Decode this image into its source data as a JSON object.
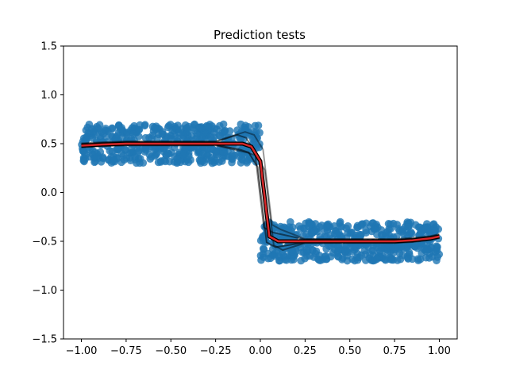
{
  "chart_data": {
    "type": "scatter",
    "title": "Prediction tests",
    "xlabel": "",
    "ylabel": "",
    "xlim": [
      -1.1,
      1.1
    ],
    "ylim": [
      -1.5,
      1.5
    ],
    "x_ticks": [
      -1.0,
      -0.75,
      -0.5,
      -0.25,
      0.0,
      0.25,
      0.5,
      0.75,
      1.0
    ],
    "x_tick_labels": [
      "−1.00",
      "−0.75",
      "−0.50",
      "−0.25",
      "0.00",
      "0.25",
      "0.50",
      "0.75",
      "1.00"
    ],
    "y_ticks": [
      -1.5,
      -1.0,
      -0.5,
      0.0,
      0.5,
      1.0,
      1.5
    ],
    "y_tick_labels": [
      "−1.5",
      "−1.0",
      "−0.5",
      "0.0",
      "0.5",
      "1.0",
      "1.5"
    ],
    "grid": false,
    "legend": "none",
    "scatter_color": "#1f77b4",
    "scatter_clusters": [
      {
        "x_range": [
          -1.0,
          0.0
        ],
        "y_range": [
          0.3,
          0.7
        ]
      },
      {
        "x_range": [
          0.0,
          1.0
        ],
        "y_range": [
          -0.7,
          -0.3
        ]
      }
    ],
    "series": [
      {
        "color": "#d62728",
        "x": [
          -1.0,
          -0.9,
          -0.75,
          -0.5,
          -0.25,
          -0.1,
          -0.05,
          0.0,
          0.05,
          0.1,
          0.25,
          0.5,
          0.75,
          0.85,
          0.95,
          1.0
        ],
        "y": [
          0.48,
          0.49,
          0.5,
          0.5,
          0.5,
          0.5,
          0.47,
          0.32,
          -0.45,
          -0.5,
          -0.5,
          -0.5,
          -0.5,
          -0.49,
          -0.47,
          -0.45
        ]
      }
    ],
    "ensemble_color": "#000000"
  }
}
